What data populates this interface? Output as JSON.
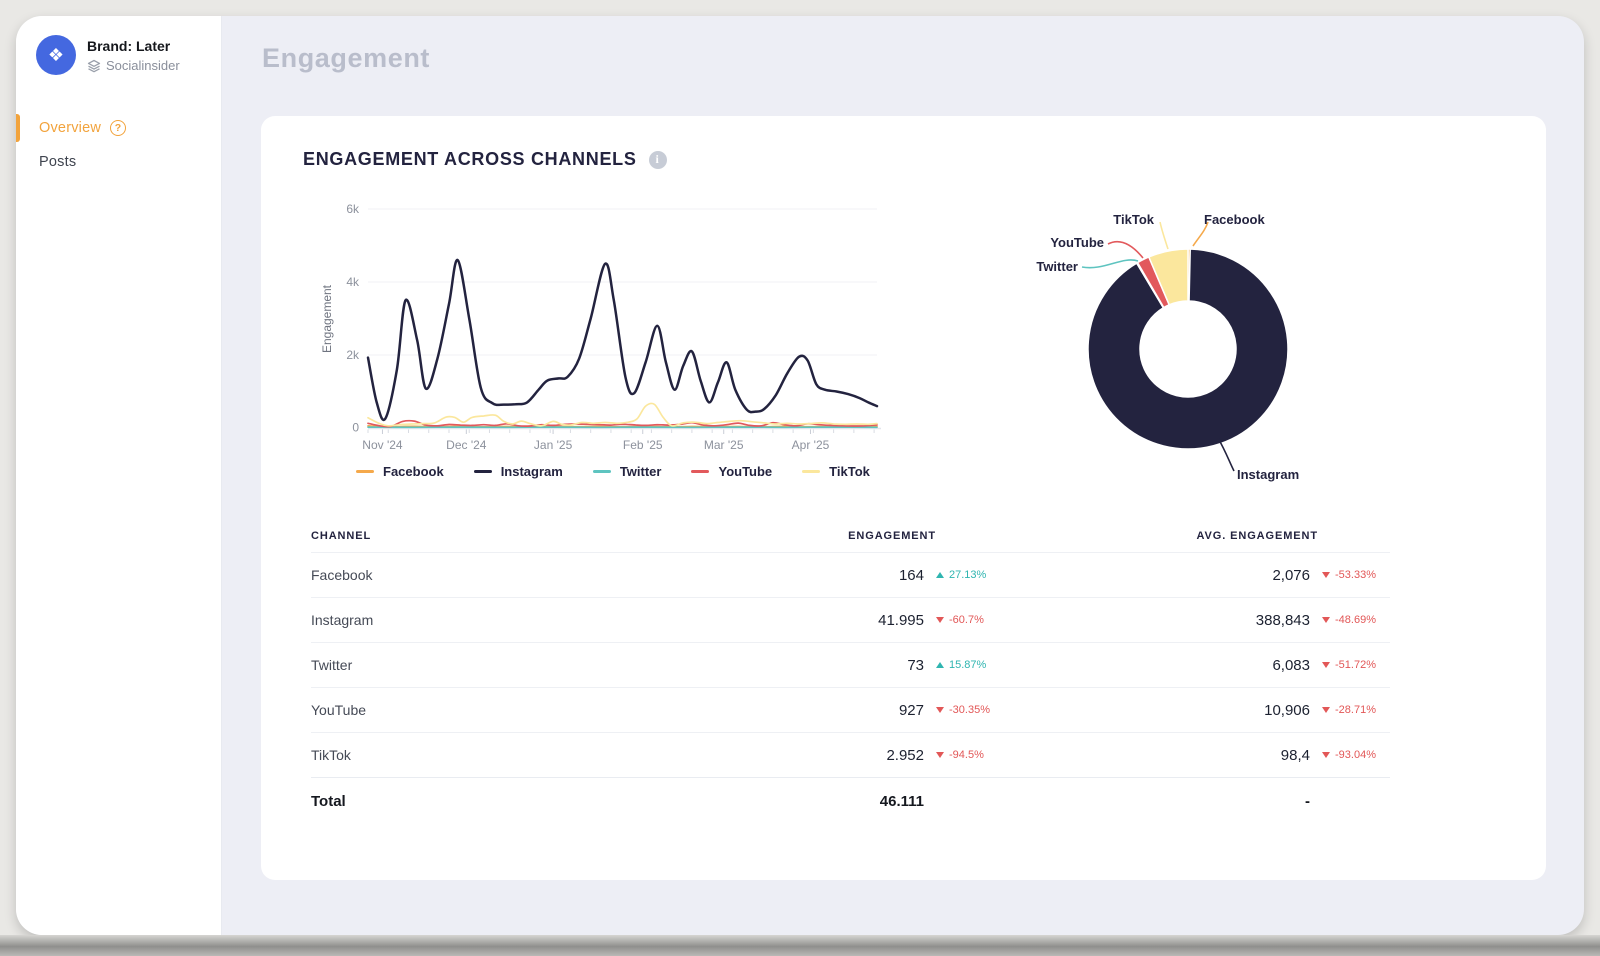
{
  "sidebar": {
    "brand": {
      "name": "Brand: Later",
      "subtitle": "Socialinsider"
    },
    "nav": [
      {
        "label": "Overview",
        "active": true,
        "help_icon": "?"
      },
      {
        "label": "Posts",
        "active": false
      }
    ]
  },
  "page": {
    "title": "Engagement"
  },
  "card": {
    "title": "ENGAGEMENT ACROSS CHANNELS",
    "info_icon": "i"
  },
  "chart_data": [
    {
      "type": "line",
      "title": "Engagement across channels over time",
      "xlabel": "",
      "ylabel": "Engagement",
      "x_range_days": [
        0,
        176
      ],
      "ylim": [
        0,
        6000
      ],
      "grid": "horizontal",
      "legend_position": "bottom",
      "yticks": [
        {
          "v": 0,
          "label": "0"
        },
        {
          "v": 2000,
          "label": "2k"
        },
        {
          "v": 4000,
          "label": "4k"
        },
        {
          "v": 6000,
          "label": "6k"
        }
      ],
      "xticks": [
        {
          "day": 5,
          "label": "Nov '24"
        },
        {
          "day": 34,
          "label": "Dec '24"
        },
        {
          "day": 64,
          "label": "Jan '25"
        },
        {
          "day": 95,
          "label": "Feb '25"
        },
        {
          "day": 123,
          "label": "Mar '25"
        },
        {
          "day": 153,
          "label": "Apr '25"
        }
      ],
      "series": [
        {
          "name": "Facebook",
          "color": "#F5A94B",
          "points": [
            [
              0,
              60
            ],
            [
              8,
              35
            ],
            [
              16,
              45
            ],
            [
              24,
              30
            ],
            [
              32,
              45
            ],
            [
              40,
              30
            ],
            [
              48,
              40
            ],
            [
              56,
              30
            ],
            [
              64,
              40
            ],
            [
              72,
              35
            ],
            [
              80,
              40
            ],
            [
              88,
              30
            ],
            [
              96,
              45
            ],
            [
              104,
              30
            ],
            [
              112,
              40
            ],
            [
              120,
              35
            ],
            [
              128,
              40
            ],
            [
              136,
              30
            ],
            [
              144,
              45
            ],
            [
              152,
              35
            ],
            [
              160,
              40
            ],
            [
              168,
              30
            ],
            [
              176,
              40
            ]
          ]
        },
        {
          "name": "Instagram",
          "color": "#23233F",
          "points": [
            [
              0,
              1930
            ],
            [
              3,
              700
            ],
            [
              6,
              260
            ],
            [
              10,
              1600
            ],
            [
              13,
              3500
            ],
            [
              17,
              2400
            ],
            [
              20,
              1080
            ],
            [
              24,
              1900
            ],
            [
              28,
              3400
            ],
            [
              31,
              4600
            ],
            [
              35,
              3000
            ],
            [
              39,
              1100
            ],
            [
              43,
              680
            ],
            [
              47,
              640
            ],
            [
              51,
              650
            ],
            [
              55,
              700
            ],
            [
              59,
              1050
            ],
            [
              62,
              1300
            ],
            [
              66,
              1360
            ],
            [
              69,
              1400
            ],
            [
              73,
              1900
            ],
            [
              77,
              3000
            ],
            [
              82,
              4500
            ],
            [
              85,
              3500
            ],
            [
              89,
              1400
            ],
            [
              92,
              950
            ],
            [
              96,
              1800
            ],
            [
              100,
              2800
            ],
            [
              103,
              1800
            ],
            [
              106,
              1050
            ],
            [
              109,
              1700
            ],
            [
              112,
              2100
            ],
            [
              115,
              1300
            ],
            [
              118,
              700
            ],
            [
              121,
              1250
            ],
            [
              124,
              1800
            ],
            [
              127,
              1050
            ],
            [
              131,
              500
            ],
            [
              134,
              450
            ],
            [
              137,
              520
            ],
            [
              141,
              900
            ],
            [
              145,
              1500
            ],
            [
              149,
              1950
            ],
            [
              152,
              1850
            ],
            [
              155,
              1200
            ],
            [
              158,
              1050
            ],
            [
              162,
              1000
            ],
            [
              166,
              930
            ],
            [
              170,
              820
            ],
            [
              173,
              700
            ],
            [
              176,
              600
            ]
          ]
        },
        {
          "name": "Twitter",
          "color": "#5EC4C0",
          "points": [
            [
              0,
              25
            ],
            [
              16,
              20
            ],
            [
              32,
              25
            ],
            [
              48,
              20
            ],
            [
              64,
              25
            ],
            [
              80,
              20
            ],
            [
              96,
              25
            ],
            [
              112,
              20
            ],
            [
              128,
              25
            ],
            [
              144,
              20
            ],
            [
              160,
              25
            ],
            [
              176,
              20
            ]
          ]
        },
        {
          "name": "YouTube",
          "color": "#E2595C",
          "points": [
            [
              0,
              130
            ],
            [
              4,
              60
            ],
            [
              8,
              45
            ],
            [
              12,
              180
            ],
            [
              16,
              190
            ],
            [
              20,
              80
            ],
            [
              24,
              60
            ],
            [
              28,
              95
            ],
            [
              32,
              80
            ],
            [
              36,
              70
            ],
            [
              40,
              90
            ],
            [
              44,
              70
            ],
            [
              48,
              115
            ],
            [
              52,
              60
            ],
            [
              56,
              55
            ],
            [
              60,
              90
            ],
            [
              64,
              70
            ],
            [
              68,
              100
            ],
            [
              72,
              110
            ],
            [
              76,
              100
            ],
            [
              80,
              90
            ],
            [
              84,
              80
            ],
            [
              88,
              100
            ],
            [
              92,
              85
            ],
            [
              96,
              70
            ],
            [
              100,
              90
            ],
            [
              104,
              80
            ],
            [
              108,
              100
            ],
            [
              112,
              145
            ],
            [
              116,
              80
            ],
            [
              120,
              60
            ],
            [
              124,
              90
            ],
            [
              128,
              135
            ],
            [
              132,
              70
            ],
            [
              136,
              60
            ],
            [
              140,
              145
            ],
            [
              144,
              90
            ],
            [
              148,
              60
            ],
            [
              152,
              115
            ],
            [
              156,
              90
            ],
            [
              160,
              70
            ],
            [
              164,
              60
            ],
            [
              168,
              55
            ],
            [
              172,
              60
            ],
            [
              176,
              85
            ]
          ]
        },
        {
          "name": "TikTok",
          "color": "#FBE79D",
          "points": [
            [
              0,
              280
            ],
            [
              4,
              120
            ],
            [
              7,
              60
            ],
            [
              11,
              90
            ],
            [
              15,
              110
            ],
            [
              19,
              120
            ],
            [
              23,
              140
            ],
            [
              27,
              300
            ],
            [
              30,
              290
            ],
            [
              33,
              160
            ],
            [
              36,
              290
            ],
            [
              40,
              330
            ],
            [
              44,
              350
            ],
            [
              47,
              180
            ],
            [
              50,
              110
            ],
            [
              53,
              190
            ],
            [
              56,
              120
            ],
            [
              60,
              60
            ],
            [
              64,
              180
            ],
            [
              67,
              100
            ],
            [
              70,
              80
            ],
            [
              74,
              150
            ],
            [
              78,
              130
            ],
            [
              82,
              150
            ],
            [
              86,
              130
            ],
            [
              90,
              160
            ],
            [
              93,
              250
            ],
            [
              96,
              600
            ],
            [
              99,
              650
            ],
            [
              102,
              300
            ],
            [
              105,
              60
            ],
            [
              109,
              140
            ],
            [
              113,
              160
            ],
            [
              117,
              120
            ],
            [
              121,
              150
            ],
            [
              125,
              180
            ],
            [
              129,
              200
            ],
            [
              133,
              170
            ],
            [
              137,
              140
            ],
            [
              141,
              110
            ],
            [
              145,
              130
            ],
            [
              149,
              110
            ],
            [
              153,
              120
            ],
            [
              157,
              140
            ],
            [
              161,
              110
            ],
            [
              165,
              100
            ],
            [
              169,
              110
            ],
            [
              173,
              100
            ],
            [
              176,
              120
            ]
          ]
        }
      ]
    },
    {
      "type": "pie",
      "subtype": "donut",
      "labels": [
        "Facebook",
        "Instagram",
        "Twitter",
        "YouTube",
        "TikTok"
      ],
      "values": [
        164,
        41995,
        73,
        927,
        2952
      ],
      "colors": [
        "#F5A94B",
        "#23233F",
        "#5EC4C0",
        "#E2595C",
        "#FBE79D"
      ],
      "start_angle_deg": 0,
      "direction": "clockwise"
    }
  ],
  "table": {
    "headers": [
      "CHANNEL",
      "ENGAGEMENT",
      "AVG. ENGAGEMENT"
    ],
    "rows": [
      {
        "channel": "Facebook",
        "engagement": "164",
        "eng_dir": "up",
        "eng_change": "27.13%",
        "avg": "2,076",
        "avg_dir": "down",
        "avg_change": "-53.33%"
      },
      {
        "channel": "Instagram",
        "engagement": "41.995",
        "eng_dir": "down",
        "eng_change": "-60.7%",
        "avg": "388,843",
        "avg_dir": "down",
        "avg_change": "-48.69%"
      },
      {
        "channel": "Twitter",
        "engagement": "73",
        "eng_dir": "up",
        "eng_change": "15.87%",
        "avg": "6,083",
        "avg_dir": "down",
        "avg_change": "-51.72%"
      },
      {
        "channel": "YouTube",
        "engagement": "927",
        "eng_dir": "down",
        "eng_change": "-30.35%",
        "avg": "10,906",
        "avg_dir": "down",
        "avg_change": "-28.71%"
      },
      {
        "channel": "TikTok",
        "engagement": "2.952",
        "eng_dir": "down",
        "eng_change": "-94.5%",
        "avg": "98,4",
        "avg_dir": "down",
        "avg_change": "-93.04%"
      }
    ],
    "total": {
      "channel": "Total",
      "engagement": "46.111",
      "avg": "-"
    }
  },
  "colors": {
    "positive": "#2FB5B0",
    "negative": "#E25757",
    "accent_orange": "#F2A33C",
    "avatar_blue": "#4468E0",
    "main_bg": "#EDEEF5",
    "outer_bg": "#E9E8E5"
  }
}
